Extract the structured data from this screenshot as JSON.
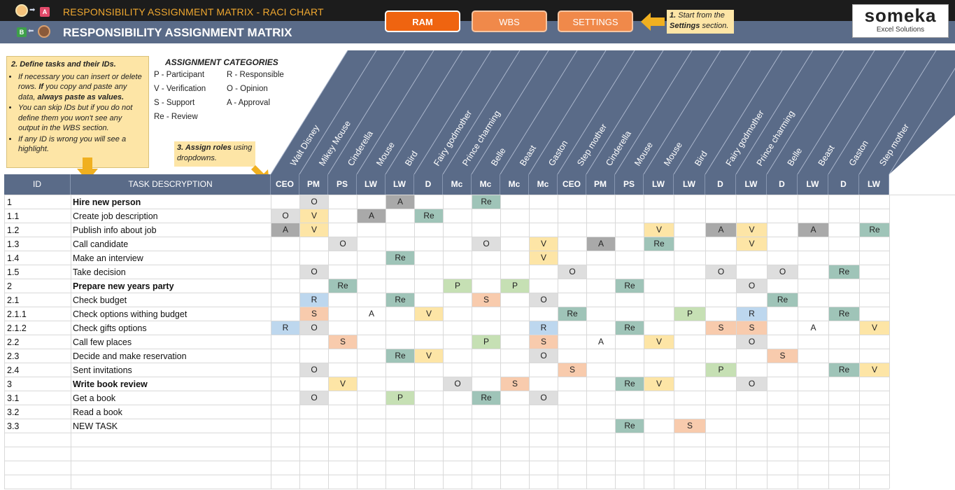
{
  "header": {
    "subtitle": "RESPONSIBILITY ASSIGNMENT MATRIX - RACI CHART",
    "title": "RESPONSIBILITY ASSIGNMENT MATRIX",
    "mini_a": "A",
    "mini_b": "B"
  },
  "nav": {
    "ram": "RAM",
    "wbs": "WBS",
    "settings": "SETTINGS"
  },
  "hint1": {
    "step": "1.",
    "text1": " Start from the",
    "bold": "Settings",
    "text2": " section."
  },
  "logo": {
    "name": "someka",
    "sub": "Excel Solutions"
  },
  "info": {
    "title": "2. Define tasks and their IDs.",
    "b1a": "If necessary you can insert or delete rows. ",
    "b1b": "If",
    "b1c": " you copy and paste any data, ",
    "b1d": "always paste as values.",
    "b2": "You can skip IDs but if you do not define them you won't see any output in the WBS section.",
    "b3": "If any ID is wrong you will see a highlight."
  },
  "categories": {
    "title": "ASSIGNMENT CATEGORIES",
    "items": [
      [
        "P - Participant",
        "R - Responsible"
      ],
      [
        "V - Verification",
        "O - Opinion"
      ],
      [
        "S - Support",
        "A - Approval"
      ],
      [
        "Re - Review",
        ""
      ]
    ]
  },
  "hint3": {
    "bold": "3. Assign roles",
    "text": " using dropdowns."
  },
  "table": {
    "id_header": "ID",
    "desc_header": "TASK DESCRYPTION",
    "roles": [
      "CEO",
      "PM",
      "PS",
      "LW",
      "LW",
      "D",
      "Mc",
      "Mc",
      "Mc",
      "Mc",
      "CEO",
      "PM",
      "PS",
      "LW",
      "LW",
      "D",
      "LW",
      "D",
      "LW",
      "D",
      "LW"
    ],
    "people": [
      "Walt Disney",
      "Mikey Mouse",
      "Cinderella",
      "Mouse",
      "Bird",
      "Fairy godmother",
      "Prince charming",
      "Belle",
      "Beast",
      "Gaston",
      "Step mother",
      "Cinderella",
      "Mouse",
      "Mouse",
      "Bird",
      "Fairy godmother",
      "Prince charming",
      "Belle",
      "Beast",
      "Gaston",
      "Step mother"
    ],
    "rows": [
      {
        "id": "1",
        "desc": "Hire new person",
        "bold": true,
        "a": {
          "1": "O",
          "4": "A",
          "7": "Re"
        }
      },
      {
        "id": "1.1",
        "desc": "Create job description",
        "bold": false,
        "a": {
          "0": "O",
          "1": "V",
          "3": "A",
          "5": "Re"
        }
      },
      {
        "id": "1.2",
        "desc": "Publish info about job",
        "bold": false,
        "a": {
          "0": "A",
          "1": "V",
          "13": "V",
          "15": "A",
          "16": "V",
          "18": "A",
          "20": "Re"
        }
      },
      {
        "id": "1.3",
        "desc": "Call candidate",
        "bold": false,
        "a": {
          "2": "O",
          "7": "O",
          "9": "V",
          "11": "A",
          "13": "Re",
          "16": "V"
        }
      },
      {
        "id": "1.4",
        "desc": "Make an interview",
        "bold": false,
        "a": {
          "4": "Re",
          "9": "V"
        }
      },
      {
        "id": "1.5",
        "desc": "Take decision",
        "bold": false,
        "a": {
          "1": "O",
          "10": "O",
          "15": "O",
          "17": "O",
          "19": "Re"
        }
      },
      {
        "id": "2",
        "desc": "Prepare new years party",
        "bold": true,
        "a": {
          "2": "Re",
          "6": "P",
          "8": "P",
          "12": "Re",
          "16": "O"
        }
      },
      {
        "id": "2.1",
        "desc": "Check budget",
        "bold": false,
        "a": {
          "1": "R",
          "4": "Re",
          "7": "S",
          "9": "O",
          "17": "Re"
        }
      },
      {
        "id": "2.1.1",
        "desc": "Check options withing budget",
        "bold": false,
        "a": {
          "1": "S",
          "3": "A",
          "5": "V",
          "10": "Re",
          "14": "P",
          "16": "R",
          "19": "Re"
        }
      },
      {
        "id": "2.1.2",
        "desc": "Check gifts options",
        "bold": false,
        "a": {
          "0": "R",
          "1": "O",
          "9": "R",
          "12": "Re",
          "15": "S",
          "16": "S",
          "18": "A",
          "20": "V"
        }
      },
      {
        "id": "2.2",
        "desc": "Call few places",
        "bold": false,
        "a": {
          "2": "S",
          "7": "P",
          "9": "S",
          "11": "A",
          "13": "V",
          "16": "O"
        }
      },
      {
        "id": "2.3",
        "desc": "Decide and make reservation",
        "bold": false,
        "a": {
          "4": "Re",
          "5": "V",
          "9": "O",
          "17": "S"
        }
      },
      {
        "id": "2.4",
        "desc": "Sent invitations",
        "bold": false,
        "a": {
          "1": "O",
          "10": "S",
          "15": "P",
          "19": "Re",
          "20": "V"
        }
      },
      {
        "id": "3",
        "desc": "Write book review",
        "bold": true,
        "a": {
          "2": "V",
          "6": "O",
          "8": "S",
          "12": "Re",
          "13": "V",
          "16": "O"
        }
      },
      {
        "id": "3.1",
        "desc": "Get a book",
        "bold": false,
        "a": {
          "1": "O",
          "4": "P",
          "7": "Re",
          "9": "O"
        }
      },
      {
        "id": "3.2",
        "desc": "Read a book",
        "bold": false,
        "a": {}
      },
      {
        "id": "3.3",
        "desc": "NEW TASK",
        "bold": false,
        "a": {
          "12": "Re",
          "14": "S"
        }
      },
      {
        "id": "",
        "desc": "",
        "bold": false,
        "a": {}
      },
      {
        "id": "",
        "desc": "",
        "bold": false,
        "a": {}
      },
      {
        "id": "",
        "desc": "",
        "bold": false,
        "a": {}
      },
      {
        "id": "",
        "desc": "",
        "bold": false,
        "a": {}
      }
    ]
  },
  "colors": {
    "header_bg": "#5a6b88",
    "top_band": "#1c1c1c",
    "accent_orange": "#ef6410",
    "note_yellow": "#fde5a6",
    "grid": "#d9d9d9",
    "A": "#a9a9a9",
    "O": "#dedede",
    "Re": "#9fc4b8",
    "V": "#fde5a6",
    "R": "#bdd7ee",
    "S": "#f8cbad",
    "P": "#c6e0b4"
  }
}
